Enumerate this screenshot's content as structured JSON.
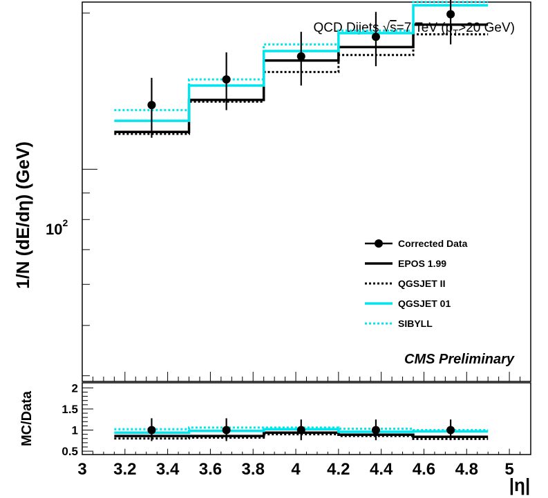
{
  "chart_data": [
    {
      "panel": "main",
      "type": "line",
      "title": "QCD Dijets √s=7 TeV (pT>20 GeV)",
      "title_parts": {
        "prefix": "QCD Dijets ",
        "sqrt_sym": "√",
        "sqrt_arg": "s",
        "energy": "=7 TeV (p",
        "sub": "T",
        "cut": ">20 GeV)"
      },
      "ylabel": "1/N (dE/dη) (GeV)",
      "yscale": "log",
      "ylim": [
        39,
        210
      ],
      "y_tick_label": {
        "base": "10",
        "exp": "2",
        "value": 100
      },
      "xlim": [
        3.0,
        5.1
      ],
      "bin_edges": [
        3.15,
        3.5,
        3.85,
        4.2,
        4.55,
        4.9
      ],
      "watermark": "CMS Preliminary",
      "series": [
        {
          "name": "Corrected Data",
          "style": "points",
          "color": "#000000",
          "x": [
            3.325,
            3.675,
            4.025,
            4.375,
            4.725
          ],
          "values": [
            133,
            149,
            165,
            180,
            199
          ],
          "err_low": [
            115,
            130,
            145,
            158,
            174
          ],
          "err_high": [
            150,
            168,
            184,
            201,
            223
          ]
        },
        {
          "name": "EPOS 1.99",
          "style": "solid",
          "color": "#000000",
          "values": [
            118,
            136,
            162,
            172,
            190
          ]
        },
        {
          "name": "QGSJET II",
          "style": "dotted",
          "color": "#000000",
          "values": [
            117,
            135,
            154,
            166,
            182
          ]
        },
        {
          "name": "QGSJET 01",
          "style": "solid",
          "color": "#00e5ee",
          "values": [
            124,
            145,
            169,
            183,
            207
          ]
        },
        {
          "name": "SIBYLL",
          "style": "dotted",
          "color": "#00e5ee",
          "values": [
            130,
            149,
            174,
            185,
            210
          ]
        }
      ]
    },
    {
      "panel": "ratio",
      "type": "line",
      "ylabel": "MC/Data",
      "xlabel": "|η|",
      "ylim": [
        0.42,
        2.12
      ],
      "yticks": [
        "0.5",
        "1",
        "1.5",
        "2"
      ],
      "ytick_values": [
        0.5,
        1,
        1.5,
        2
      ],
      "xticks": [
        "3",
        "3.2",
        "3.4",
        "3.6",
        "3.8",
        "4",
        "4.2",
        "4.4",
        "4.6",
        "4.8",
        "5"
      ],
      "xtick_values": [
        3,
        3.2,
        3.4,
        3.6,
        3.8,
        4,
        4.2,
        4.4,
        4.6,
        4.8,
        5
      ],
      "series": [
        {
          "name": "Corrected Data",
          "style": "points",
          "color": "#000000",
          "x": [
            3.325,
            3.675,
            4.025,
            4.375,
            4.725
          ],
          "values": [
            1,
            1,
            1,
            1,
            1
          ],
          "err_low": [
            0.74,
            0.74,
            0.76,
            0.76,
            0.76
          ],
          "err_high": [
            1.28,
            1.28,
            1.25,
            1.25,
            1.25
          ]
        },
        {
          "name": "EPOS 1.99",
          "style": "solid",
          "color": "#000000",
          "values": [
            0.86,
            0.86,
            0.94,
            0.89,
            0.84
          ]
        },
        {
          "name": "QGSJET II",
          "style": "dotted",
          "color": "#000000",
          "values": [
            0.8,
            0.82,
            0.9,
            0.86,
            0.79
          ]
        },
        {
          "name": "QGSJET 01",
          "style": "solid",
          "color": "#00e5ee",
          "values": [
            0.94,
            0.98,
            1.02,
            0.96,
            0.97
          ]
        },
        {
          "name": "SIBYLL",
          "style": "dotted",
          "color": "#00e5ee",
          "values": [
            1.02,
            1.06,
            1.06,
            1.03,
            1.0
          ]
        }
      ]
    }
  ]
}
